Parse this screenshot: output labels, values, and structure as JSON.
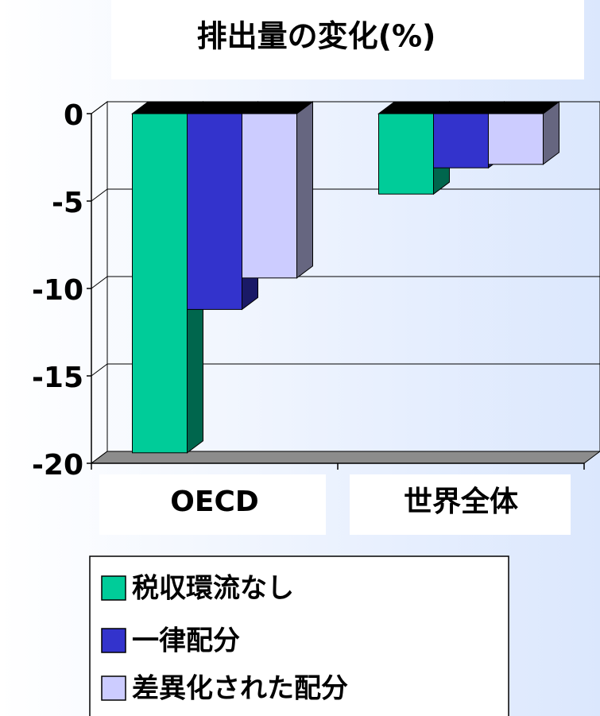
{
  "chart_data": {
    "type": "bar",
    "title": "排出量の変化(%)",
    "categories": [
      "OECD",
      "世界全体"
    ],
    "series": [
      {
        "name": "税収環流なし",
        "color": "#00cc99",
        "values": [
          -19.4,
          -4.6
        ]
      },
      {
        "name": "一律配分",
        "color": "#3333cc",
        "values": [
          -11.2,
          -3.1
        ]
      },
      {
        "name": "差異化された配分",
        "color": "#ccccff",
        "values": [
          -9.4,
          -2.9
        ]
      }
    ],
    "ylim": [
      -20,
      0
    ],
    "yticks": [
      -20,
      -15,
      -10,
      -5,
      0
    ],
    "grid": true,
    "legend": "bottom"
  }
}
